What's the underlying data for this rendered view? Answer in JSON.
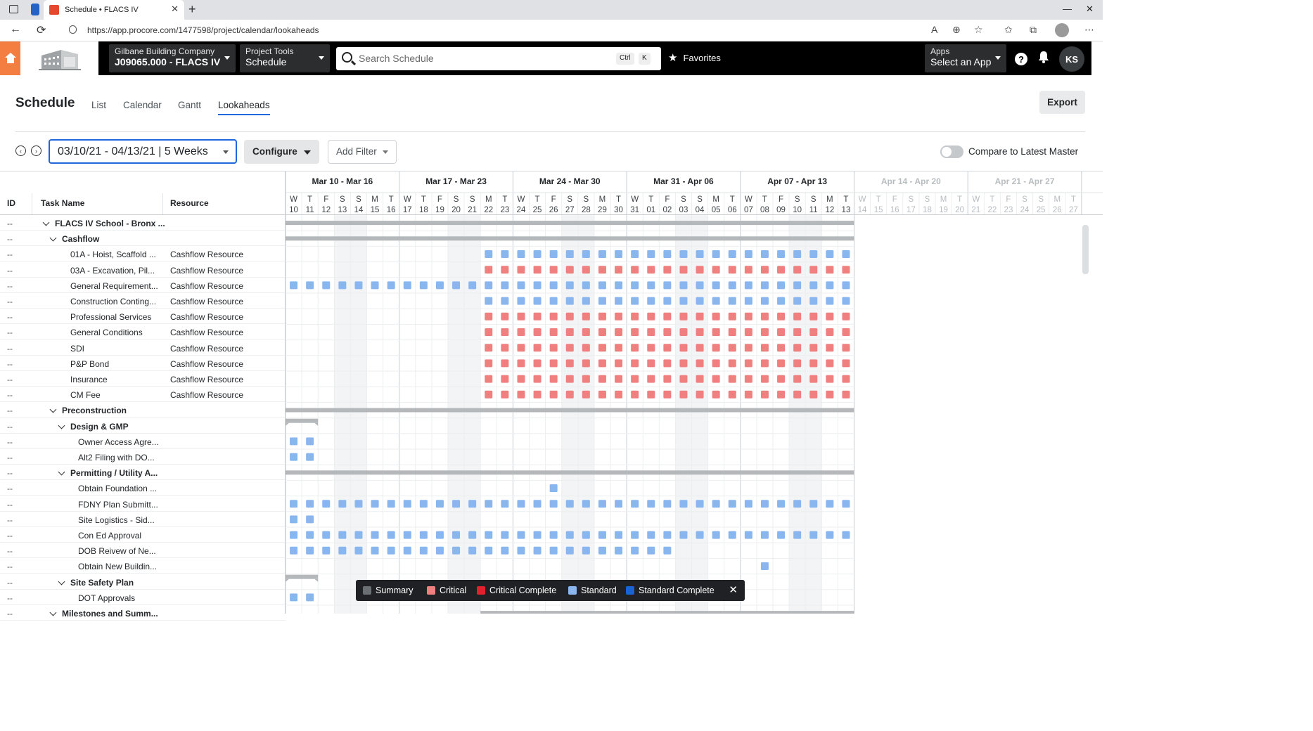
{
  "browser": {
    "tab_title": "Schedule • FLACS IV",
    "new_tab": "+",
    "url": "https://app.procore.com/1477598/project/calendar/lookaheads"
  },
  "header": {
    "company_line1": "Gilbane Building Company",
    "company_line2": "J09065.000 - FLACS IV",
    "tools_line1": "Project Tools",
    "tools_line2": "Schedule",
    "search_placeholder": "Search Schedule",
    "kbd_ctrl": "Ctrl",
    "kbd_k": "K",
    "favorites": "Favorites",
    "apps_line1": "Apps",
    "apps_line2": "Select an App",
    "avatar_initials": "KS",
    "help": "?"
  },
  "page": {
    "title": "Schedule",
    "tabs": [
      "List",
      "Calendar",
      "Gantt",
      "Lookaheads"
    ],
    "active_tab": "Lookaheads",
    "export": "Export",
    "date_range": "03/10/21 - 04/13/21 | 5 Weeks",
    "configure": "Configure",
    "add_filter": "Add Filter",
    "compare_label": "Compare to Latest Master"
  },
  "columns": {
    "id": "ID",
    "task": "Task Name",
    "resource": "Resource"
  },
  "weeks": [
    "Mar 10 - Mar 16",
    "Mar 17 - Mar 23",
    "Mar 24 - Mar 30",
    "Mar 31 - Apr 06",
    "Apr 07 - Apr 13",
    "Apr 14 - Apr 20",
    "Apr 21 - Apr 27"
  ],
  "days": {
    "letters": [
      "W",
      "T",
      "F",
      "S",
      "S",
      "M",
      "T",
      "W",
      "T",
      "F",
      "S",
      "S",
      "M",
      "T",
      "W",
      "T",
      "F",
      "S",
      "S",
      "M",
      "T",
      "W",
      "T",
      "F",
      "S",
      "S",
      "M",
      "T",
      "W",
      "T",
      "F",
      "S",
      "S",
      "M",
      "T",
      "W",
      "T",
      "F",
      "S",
      "S",
      "M",
      "T",
      "W",
      "T",
      "F",
      "S",
      "S",
      "M",
      "T"
    ],
    "numbers": [
      "10",
      "11",
      "12",
      "13",
      "14",
      "15",
      "16",
      "17",
      "18",
      "19",
      "20",
      "21",
      "22",
      "23",
      "24",
      "25",
      "26",
      "27",
      "28",
      "29",
      "30",
      "31",
      "01",
      "02",
      "03",
      "04",
      "05",
      "06",
      "07",
      "08",
      "09",
      "10",
      "11",
      "12",
      "13",
      "14",
      "15",
      "16",
      "17",
      "18",
      "19",
      "20",
      "21",
      "22",
      "23",
      "24",
      "25",
      "26",
      "27"
    ],
    "active_count": 35
  },
  "tasks": [
    {
      "id": "--",
      "name": "FLACS IV School - Bronx ...",
      "resource": "",
      "level": 0,
      "bold": true,
      "expand": true,
      "kind": "summary",
      "range": [
        0,
        34
      ]
    },
    {
      "id": "--",
      "name": "Cashflow",
      "resource": "",
      "level": 1,
      "bold": true,
      "expand": true,
      "kind": "summary",
      "range": [
        0,
        34
      ]
    },
    {
      "id": "--",
      "name": "01A - Hoist, Scaffold ...",
      "resource": "Cashflow Resource",
      "level": 2,
      "kind": "standard",
      "range": [
        12,
        34
      ]
    },
    {
      "id": "--",
      "name": "03A - Excavation, Pil...",
      "resource": "Cashflow Resource",
      "level": 2,
      "kind": "critical",
      "range": [
        12,
        34
      ]
    },
    {
      "id": "--",
      "name": "General Requirement...",
      "resource": "Cashflow Resource",
      "level": 2,
      "kind": "standard",
      "range": [
        0,
        34
      ]
    },
    {
      "id": "--",
      "name": "Construction Conting...",
      "resource": "Cashflow Resource",
      "level": 2,
      "kind": "standard",
      "range": [
        12,
        34
      ]
    },
    {
      "id": "--",
      "name": "Professional Services",
      "resource": "Cashflow Resource",
      "level": 2,
      "kind": "critical",
      "range": [
        12,
        34
      ]
    },
    {
      "id": "--",
      "name": "General Conditions",
      "resource": "Cashflow Resource",
      "level": 2,
      "kind": "critical",
      "range": [
        12,
        34
      ]
    },
    {
      "id": "--",
      "name": "SDI",
      "resource": "Cashflow Resource",
      "level": 2,
      "kind": "critical",
      "range": [
        12,
        34
      ]
    },
    {
      "id": "--",
      "name": "P&P Bond",
      "resource": "Cashflow Resource",
      "level": 2,
      "kind": "critical",
      "range": [
        12,
        34
      ]
    },
    {
      "id": "--",
      "name": "Insurance",
      "resource": "Cashflow Resource",
      "level": 2,
      "kind": "critical",
      "range": [
        12,
        34
      ]
    },
    {
      "id": "--",
      "name": "CM Fee",
      "resource": "Cashflow Resource",
      "level": 2,
      "kind": "critical",
      "range": [
        12,
        34
      ]
    },
    {
      "id": "--",
      "name": "Preconstruction",
      "resource": "",
      "level": 1,
      "bold": true,
      "expand": true,
      "kind": "summary",
      "range": [
        0,
        34
      ]
    },
    {
      "id": "--",
      "name": "Design & GMP",
      "resource": "",
      "level": 2,
      "bold": true,
      "expand": true,
      "kind": "summary",
      "range": [
        0,
        1
      ]
    },
    {
      "id": "--",
      "name": "Owner Access Agre...",
      "resource": "",
      "level": 3,
      "kind": "standard",
      "range": [
        0,
        1
      ]
    },
    {
      "id": "--",
      "name": "Alt2 Filing with DO...",
      "resource": "",
      "level": 3,
      "kind": "standard",
      "range": [
        0,
        1
      ]
    },
    {
      "id": "--",
      "name": "Permitting / Utility A...",
      "resource": "",
      "level": 2,
      "bold": true,
      "expand": true,
      "kind": "summary",
      "range": [
        0,
        34
      ]
    },
    {
      "id": "--",
      "name": "Obtain Foundation ...",
      "resource": "",
      "level": 3,
      "kind": "standard",
      "range": [
        16,
        16
      ]
    },
    {
      "id": "--",
      "name": "FDNY Plan Submitt...",
      "resource": "",
      "level": 3,
      "kind": "standard",
      "range": [
        0,
        34
      ]
    },
    {
      "id": "--",
      "name": "Site Logistics - Sid...",
      "resource": "",
      "level": 3,
      "kind": "standard",
      "range": [
        0,
        1
      ]
    },
    {
      "id": "--",
      "name": "Con Ed Approval",
      "resource": "",
      "level": 3,
      "kind": "standard",
      "range": [
        0,
        34
      ]
    },
    {
      "id": "--",
      "name": "DOB Reivew of Ne...",
      "resource": "",
      "level": 3,
      "kind": "standard",
      "range": [
        0,
        23
      ]
    },
    {
      "id": "--",
      "name": "Obtain New Buildin...",
      "resource": "",
      "level": 3,
      "kind": "standard",
      "range": [
        29,
        29
      ]
    },
    {
      "id": "--",
      "name": "Site Safety Plan",
      "resource": "",
      "level": 2,
      "bold": true,
      "expand": true,
      "kind": "summary",
      "range": [
        0,
        1
      ]
    },
    {
      "id": "--",
      "name": "DOT Approvals",
      "resource": "",
      "level": 3,
      "kind": "standard",
      "range": [
        0,
        1
      ]
    },
    {
      "id": "--",
      "name": "Milestones and Summ...",
      "resource": "",
      "level": 1,
      "bold": true,
      "expand": true,
      "kind": "summary",
      "range": [
        12,
        34
      ]
    }
  ],
  "legend": [
    {
      "label": "Summary",
      "color": "#6a6f73"
    },
    {
      "label": "Critical",
      "color": "#f08080"
    },
    {
      "label": "Critical Complete",
      "color": "#e0202d"
    },
    {
      "label": "Standard",
      "color": "#8ab6f0"
    },
    {
      "label": "Standard Complete",
      "color": "#1a63d6"
    }
  ],
  "colors": {
    "standard": "#8ab6f0",
    "critical": "#f08080",
    "summary": "#b4b8bb",
    "accent": "#2066df",
    "brand_orange": "#f47e42"
  }
}
